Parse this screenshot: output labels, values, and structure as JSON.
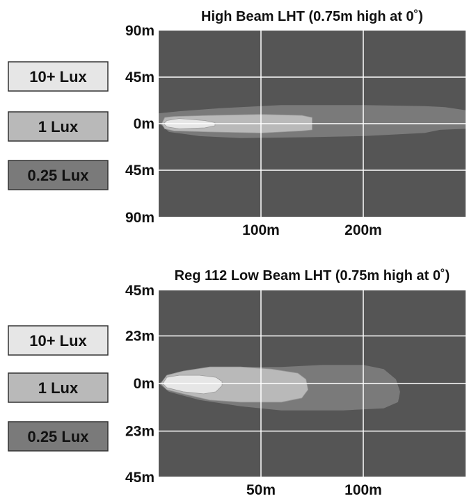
{
  "colors": {
    "background": "#ffffff",
    "plot_background": "#555555",
    "grid": "#ffffff",
    "zone_025_lux": "#7a7a7a",
    "zone_1_lux": "#b9b9b9",
    "zone_10_lux": "#e6e6e6",
    "legend_border": "#333333",
    "text": "#111111"
  },
  "chart_data": [
    {
      "type": "heatmap",
      "title": "High Beam LHT (0.75m high at 0˚)",
      "xlabel": "",
      "ylabel": "",
      "xlim": [
        0,
        300
      ],
      "ylim": [
        -90,
        90
      ],
      "x_ticks": [
        {
          "value": 100,
          "label": "100m"
        },
        {
          "value": 200,
          "label": "200m"
        }
      ],
      "y_ticks": [
        {
          "value": 90,
          "label": "90m"
        },
        {
          "value": 45,
          "label": "45m"
        },
        {
          "value": 0,
          "label": "0m"
        },
        {
          "value": -45,
          "label": "45m"
        },
        {
          "value": -90,
          "label": "90m"
        }
      ],
      "grid": true,
      "legend": [
        {
          "label": "10+ Lux",
          "color_key": "zone_10_lux"
        },
        {
          "label": "1 Lux",
          "color_key": "zone_1_lux"
        },
        {
          "label": "0.25 Lux",
          "color_key": "zone_025_lux"
        }
      ],
      "legend_placement": "left",
      "zones": [
        {
          "level": "0.25 Lux",
          "color_key": "zone_025_lux",
          "outline": [
            [
              0,
              1
            ],
            [
              10,
              -8
            ],
            [
              40,
              -12
            ],
            [
              80,
              -14
            ],
            [
              150,
              -13
            ],
            [
              200,
              -12
            ],
            [
              260,
              -9
            ],
            [
              275,
              -6
            ],
            [
              300,
              -5
            ],
            [
              300,
              13
            ],
            [
              280,
              16
            ],
            [
              260,
              17
            ],
            [
              200,
              18
            ],
            [
              120,
              18
            ],
            [
              60,
              15
            ],
            [
              20,
              12
            ],
            [
              0,
              10
            ]
          ]
        },
        {
          "level": "1 Lux",
          "color_key": "zone_1_lux",
          "outline": [
            [
              3,
              0
            ],
            [
              6,
              -5
            ],
            [
              15,
              -7
            ],
            [
              50,
              -8
            ],
            [
              100,
              -9
            ],
            [
              140,
              -7
            ],
            [
              150,
              -6
            ],
            [
              150,
              6
            ],
            [
              140,
              8
            ],
            [
              100,
              9
            ],
            [
              50,
              8
            ],
            [
              15,
              7
            ],
            [
              6,
              6
            ]
          ]
        },
        {
          "level": "10+ Lux",
          "color_key": "zone_10_lux",
          "outline": [
            [
              5,
              0
            ],
            [
              8,
              -3
            ],
            [
              20,
              -5
            ],
            [
              45,
              -4
            ],
            [
              55,
              -2
            ],
            [
              55,
              1
            ],
            [
              45,
              3
            ],
            [
              20,
              5
            ],
            [
              8,
              3
            ]
          ]
        }
      ]
    },
    {
      "type": "heatmap",
      "title": "Reg 112 Low Beam LHT (0.75m high at 0˚)",
      "xlabel": "",
      "ylabel": "",
      "xlim": [
        0,
        150
      ],
      "ylim": [
        -45,
        45
      ],
      "x_ticks": [
        {
          "value": 50,
          "label": "50m"
        },
        {
          "value": 100,
          "label": "100m"
        }
      ],
      "y_ticks": [
        {
          "value": 45,
          "label": "45m"
        },
        {
          "value": 23,
          "label": "23m"
        },
        {
          "value": 0,
          "label": "0m"
        },
        {
          "value": -23,
          "label": "23m"
        },
        {
          "value": -45,
          "label": "45m"
        }
      ],
      "grid": true,
      "legend": [
        {
          "label": "10+ Lux",
          "color_key": "zone_10_lux"
        },
        {
          "label": "1 Lux",
          "color_key": "zone_1_lux"
        },
        {
          "label": "0.25 Lux",
          "color_key": "zone_025_lux"
        }
      ],
      "legend_placement": "left",
      "zones": [
        {
          "level": "0.25 Lux",
          "color_key": "zone_025_lux",
          "outline": [
            [
              0,
              0
            ],
            [
              5,
              -4
            ],
            [
              20,
              -8
            ],
            [
              40,
              -11
            ],
            [
              60,
              -13
            ],
            [
              90,
              -13
            ],
            [
              110,
              -12
            ],
            [
              117,
              -9
            ],
            [
              118,
              -4
            ],
            [
              116,
              2
            ],
            [
              110,
              7
            ],
            [
              100,
              9
            ],
            [
              80,
              9
            ],
            [
              60,
              8
            ],
            [
              40,
              8
            ],
            [
              20,
              6
            ],
            [
              5,
              3
            ]
          ]
        },
        {
          "level": "1 Lux",
          "color_key": "zone_1_lux",
          "outline": [
            [
              1,
              0
            ],
            [
              4,
              -3
            ],
            [
              12,
              -5
            ],
            [
              25,
              -8
            ],
            [
              40,
              -9
            ],
            [
              60,
              -9
            ],
            [
              70,
              -7
            ],
            [
              73,
              -3
            ],
            [
              72,
              2
            ],
            [
              68,
              5
            ],
            [
              55,
              7
            ],
            [
              40,
              8
            ],
            [
              25,
              8
            ],
            [
              12,
              6
            ],
            [
              4,
              4
            ]
          ]
        },
        {
          "level": "10+ Lux",
          "color_key": "zone_10_lux",
          "outline": [
            [
              2,
              0
            ],
            [
              4,
              -2
            ],
            [
              12,
              -4
            ],
            [
              22,
              -5
            ],
            [
              28,
              -4
            ],
            [
              31,
              -1
            ],
            [
              31,
              1
            ],
            [
              28,
              3
            ],
            [
              20,
              4
            ],
            [
              10,
              4
            ],
            [
              4,
              3
            ]
          ]
        }
      ]
    }
  ]
}
